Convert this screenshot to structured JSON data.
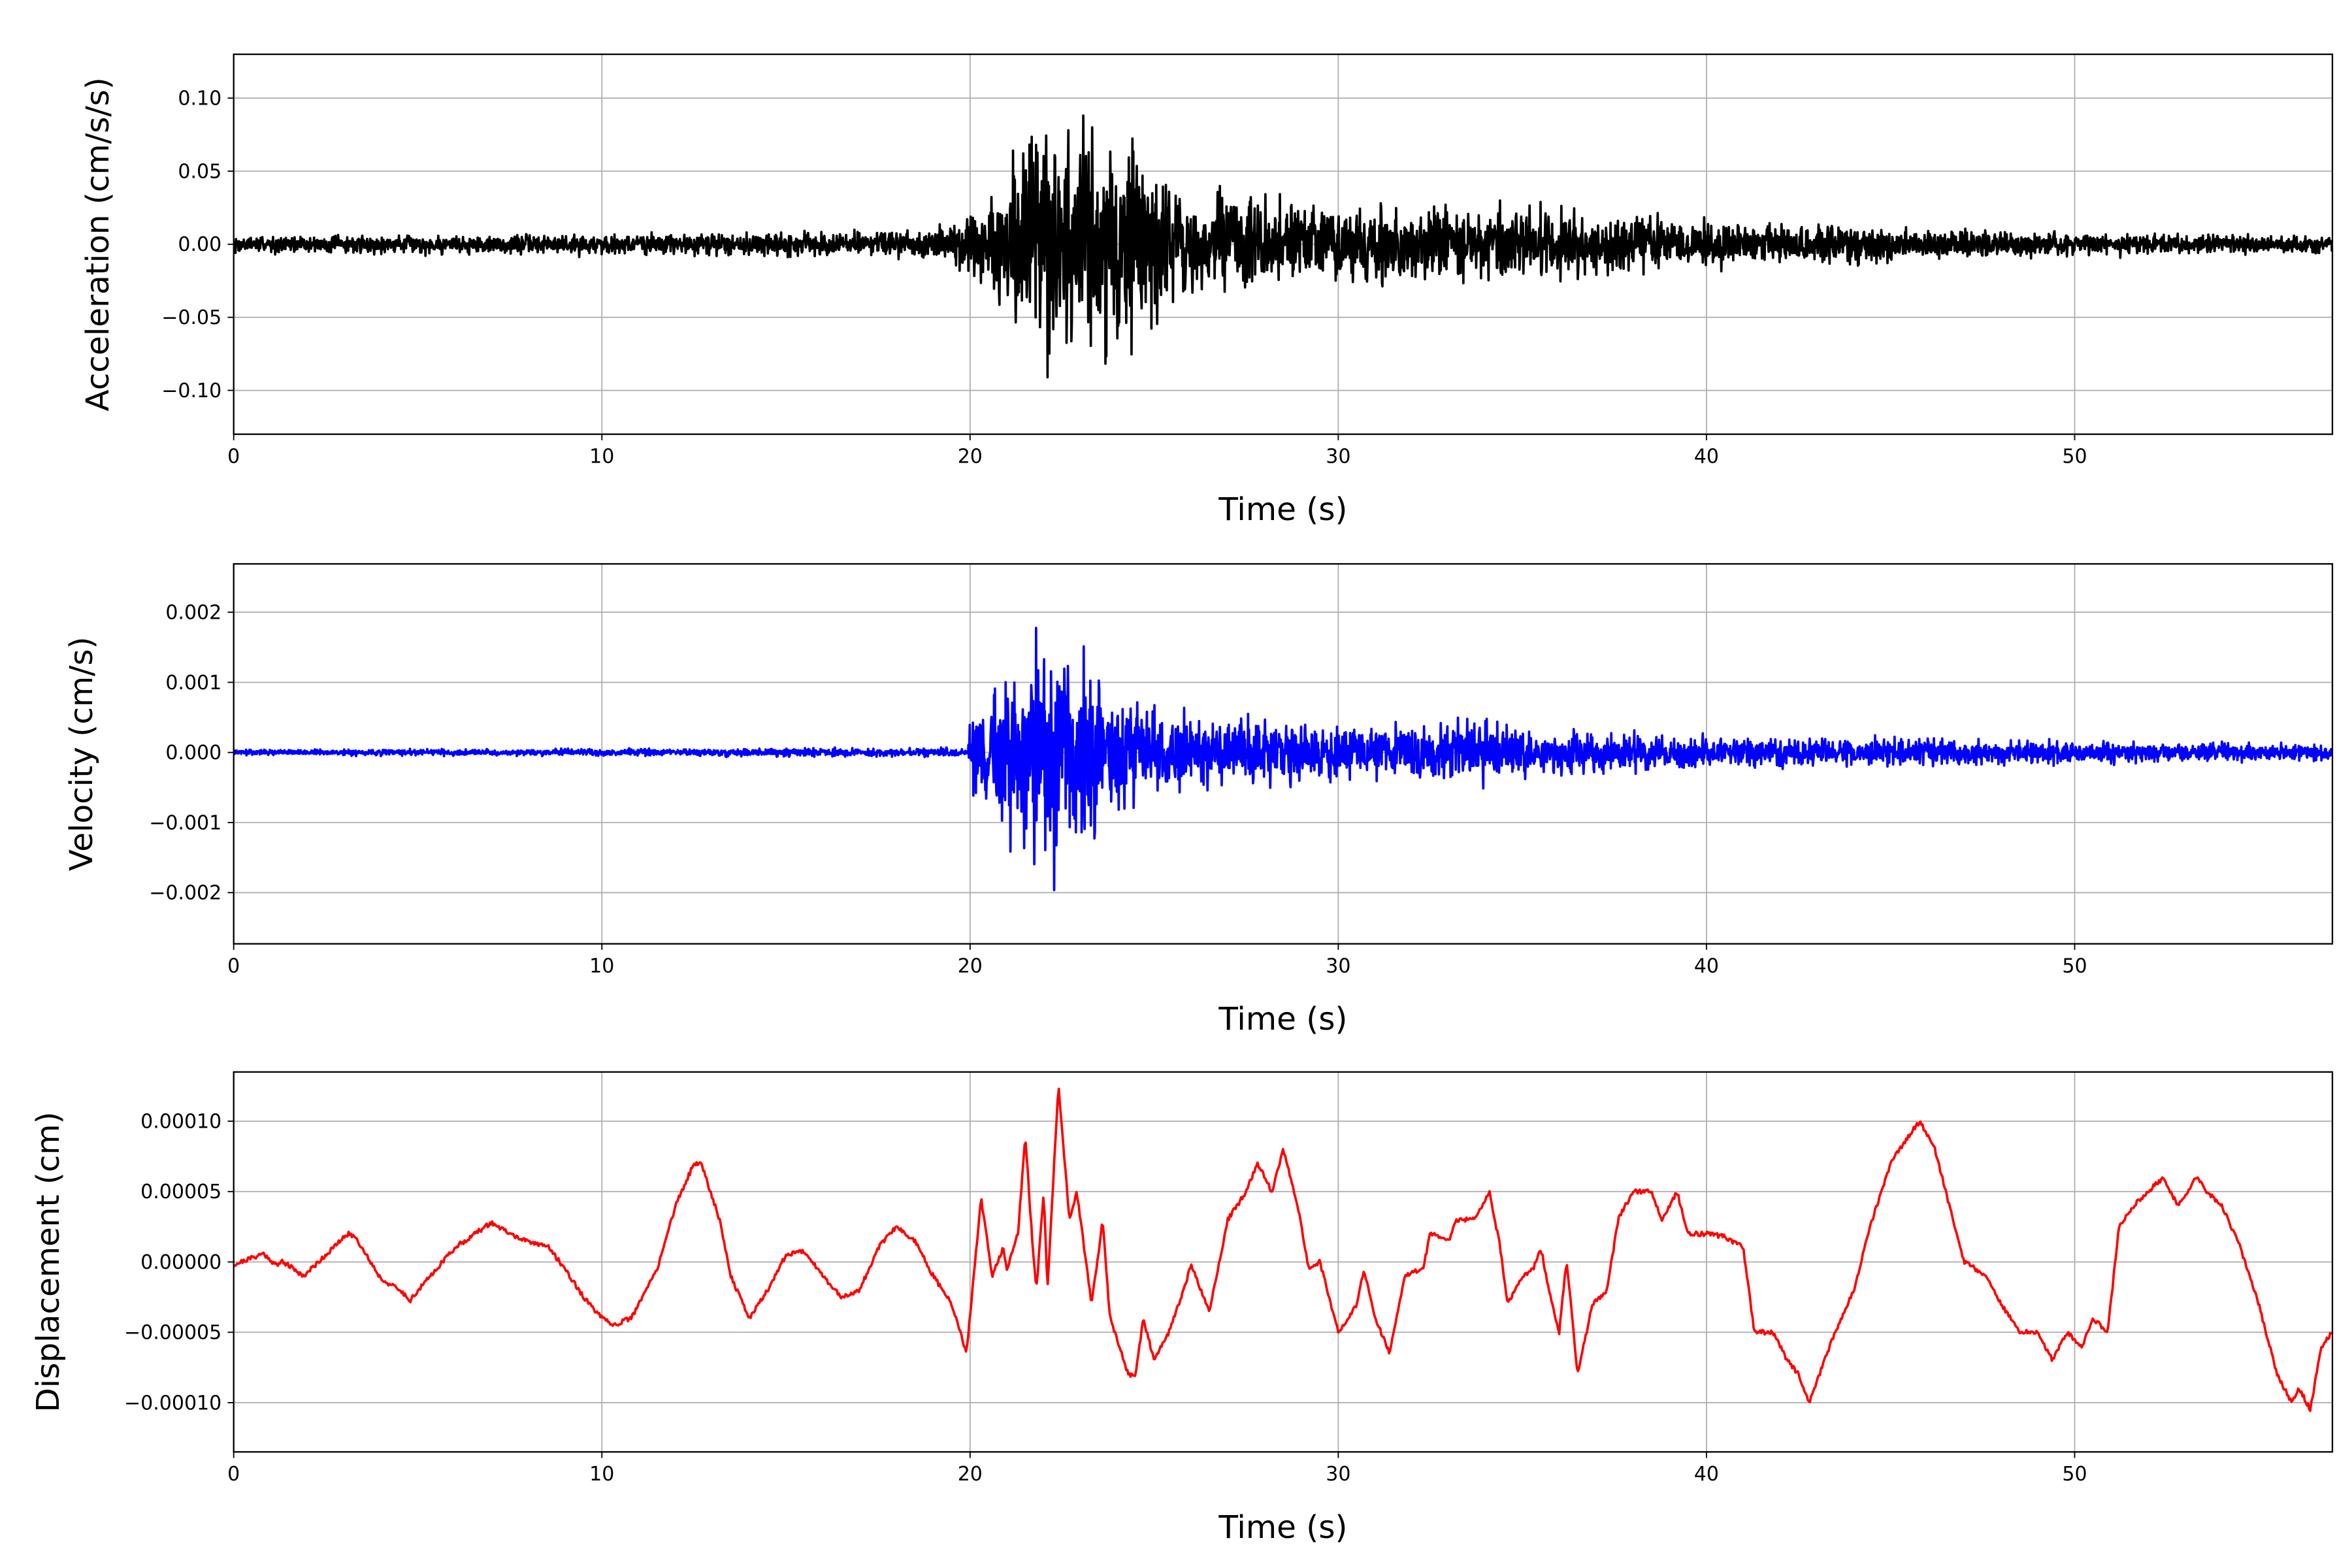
{
  "chart_data": [
    {
      "type": "line",
      "title": "",
      "xlabel": "Time (s)",
      "ylabel": "Acceleration (cm/s/s)",
      "xlim": [
        0,
        57
      ],
      "ylim": [
        -0.13,
        0.13
      ],
      "xticks": [
        0,
        10,
        20,
        30,
        40,
        50
      ],
      "xtick_labels": [
        "0",
        "10",
        "20",
        "30",
        "40",
        "50"
      ],
      "yticks": [
        -0.1,
        -0.05,
        0,
        0.05,
        0.1
      ],
      "ytick_labels": [
        "−0.10",
        "−0.05",
        "0.00",
        "0.05",
        "0.10"
      ],
      "grid": true,
      "color": "#000000",
      "signal": "noise",
      "amplitude_envelope": [
        [
          0,
          0.007
        ],
        [
          19,
          0.011
        ],
        [
          20,
          0.03
        ],
        [
          21,
          0.06
        ],
        [
          22.2,
          0.11
        ],
        [
          24.5,
          0.085
        ],
        [
          25.5,
          0.05
        ],
        [
          27,
          0.042
        ],
        [
          30,
          0.032
        ],
        [
          34,
          0.032
        ],
        [
          36,
          0.028
        ],
        [
          40,
          0.02
        ],
        [
          45,
          0.015
        ],
        [
          50,
          0.01
        ],
        [
          57,
          0.007
        ]
      ],
      "seed": 7
    },
    {
      "type": "line",
      "title": "",
      "xlabel": "Time (s)",
      "ylabel": "Velocity (cm/s)",
      "xlim": [
        0,
        57
      ],
      "ylim": [
        -0.00273,
        0.00269
      ],
      "xticks": [
        0,
        10,
        20,
        30,
        40,
        50
      ],
      "xtick_labels": [
        "0",
        "10",
        "20",
        "30",
        "40",
        "50"
      ],
      "yticks": [
        -0.002,
        -0.001,
        0,
        0.001,
        0.002
      ],
      "ytick_labels": [
        "−0.002",
        "−0.001",
        "0.000",
        "0.001",
        "0.002"
      ],
      "grid": true,
      "color": "#0000ff",
      "signal": "noise",
      "amplitude_envelope": [
        [
          0,
          5e-05
        ],
        [
          19.9,
          8e-05
        ],
        [
          20.1,
          0.0008
        ],
        [
          21.5,
          0.0017
        ],
        [
          22.3,
          0.0022
        ],
        [
          24,
          0.0012
        ],
        [
          25,
          0.0007
        ],
        [
          30,
          0.0005
        ],
        [
          34,
          0.0006
        ],
        [
          35,
          0.0004
        ],
        [
          40,
          0.0003
        ],
        [
          50,
          0.0002
        ],
        [
          57,
          0.00015
        ]
      ],
      "seed": 13
    },
    {
      "type": "line",
      "title": "",
      "xlabel": "Time (s)",
      "ylabel": "Displacement (cm)",
      "xlim": [
        0,
        57
      ],
      "ylim": [
        -0.000135,
        0.000135
      ],
      "xticks": [
        0,
        10,
        20,
        30,
        40,
        50
      ],
      "xtick_labels": [
        "0",
        "10",
        "20",
        "30",
        "40",
        "50"
      ],
      "yticks": [
        -0.0001,
        -5e-05,
        0,
        5e-05,
        0.0001
      ],
      "ytick_labels": [
        "−0.00010",
        "−0.00005",
        "0.00000",
        "0.00005",
        "0.00010"
      ],
      "grid": true,
      "color": "#ff0000",
      "signal": "points",
      "points": [
        [
          0,
          -2e-06
        ],
        [
          0.8,
          6e-06
        ],
        [
          1.2,
          -3e-06
        ],
        [
          1.3,
          1e-06
        ],
        [
          1.9,
          -1e-05
        ],
        [
          2.5,
          5e-06
        ],
        [
          3.1,
          2e-05
        ],
        [
          3.3,
          1.8e-05
        ],
        [
          4,
          -1.2e-05
        ],
        [
          4.5,
          -2e-05
        ],
        [
          4.8,
          -2.7e-05
        ],
        [
          5.5,
          -5e-06
        ],
        [
          6,
          1e-05
        ],
        [
          7,
          2.8e-05
        ],
        [
          7.5,
          2e-05
        ],
        [
          8,
          1.4e-05
        ],
        [
          8.5,
          1.2e-05
        ],
        [
          9,
          -5e-06
        ],
        [
          9.5,
          -2.5e-05
        ],
        [
          10,
          -4e-05
        ],
        [
          10.3,
          -4.5e-05
        ],
        [
          10.8,
          -4e-05
        ],
        [
          11.5,
          -5e-06
        ],
        [
          12,
          4e-05
        ],
        [
          12.5,
          7e-05
        ],
        [
          12.7,
          7e-05
        ],
        [
          13.2,
          3e-05
        ],
        [
          13.5,
          -1e-05
        ],
        [
          14,
          -4e-05
        ],
        [
          14.5,
          -2e-05
        ],
        [
          15,
          5e-06
        ],
        [
          15.5,
          8e-06
        ],
        [
          16,
          -1e-05
        ],
        [
          16.5,
          -2.5e-05
        ],
        [
          17,
          -2e-05
        ],
        [
          17.5,
          1e-05
        ],
        [
          18,
          2.5e-05
        ],
        [
          18.5,
          1.5e-05
        ],
        [
          19,
          -1e-05
        ],
        [
          19.5,
          -3e-05
        ],
        [
          19.9,
          -6.5e-05
        ],
        [
          20.3,
          4.5e-05
        ],
        [
          20.6,
          -1e-05
        ],
        [
          20.9,
          1e-05
        ],
        [
          21,
          -5e-06
        ],
        [
          21.3,
          2e-05
        ],
        [
          21.5,
          9e-05
        ],
        [
          21.7,
          1e-05
        ],
        [
          21.8,
          -2e-05
        ],
        [
          22,
          5e-05
        ],
        [
          22.1,
          -2e-05
        ],
        [
          22.4,
          0.000125
        ],
        [
          22.7,
          3e-05
        ],
        [
          22.9,
          5e-05
        ],
        [
          23.3,
          -3e-05
        ],
        [
          23.6,
          3e-05
        ],
        [
          23.8,
          -4e-05
        ],
        [
          24.3,
          -8e-05
        ],
        [
          24.5,
          -8e-05
        ],
        [
          24.7,
          -4e-05
        ],
        [
          25,
          -7e-05
        ],
        [
          25.4,
          -5e-05
        ],
        [
          25.8,
          -2e-05
        ],
        [
          26,
          -2e-06
        ],
        [
          26.5,
          -3.5e-05
        ],
        [
          27,
          3e-05
        ],
        [
          27.5,
          5e-05
        ],
        [
          27.8,
          7e-05
        ],
        [
          28.2,
          5e-05
        ],
        [
          28.5,
          8e-05
        ],
        [
          28.9,
          4e-05
        ],
        [
          29.2,
          -5e-06
        ],
        [
          29.5,
          0
        ],
        [
          30,
          -5e-05
        ],
        [
          30.5,
          -3e-05
        ],
        [
          30.7,
          -5e-06
        ],
        [
          31,
          -4e-05
        ],
        [
          31.4,
          -6.5e-05
        ],
        [
          31.8,
          -1e-05
        ],
        [
          32.3,
          -5e-06
        ],
        [
          32.5,
          2e-05
        ],
        [
          33,
          1.5e-05
        ],
        [
          33.2,
          3e-05
        ],
        [
          33.7,
          3e-05
        ],
        [
          34.1,
          5e-05
        ],
        [
          34.4,
          1e-05
        ],
        [
          34.6,
          -3e-05
        ],
        [
          35,
          -1e-05
        ],
        [
          35.3,
          -5e-06
        ],
        [
          35.5,
          1e-05
        ],
        [
          35.8,
          -3e-05
        ],
        [
          36,
          -5e-05
        ],
        [
          36.2,
          2e-06
        ],
        [
          36.5,
          -8e-05
        ],
        [
          36.9,
          -3e-05
        ],
        [
          37.3,
          -2e-05
        ],
        [
          37.6,
          3e-05
        ],
        [
          38,
          5e-05
        ],
        [
          38.5,
          5e-05
        ],
        [
          38.8,
          3e-05
        ],
        [
          39.2,
          5e-05
        ],
        [
          39.5,
          2e-05
        ],
        [
          40,
          2e-05
        ],
        [
          40.5,
          1.8e-05
        ],
        [
          41,
          1e-05
        ],
        [
          41.3,
          -5e-05
        ],
        [
          41.8,
          -5e-05
        ],
        [
          42.2,
          -7e-05
        ],
        [
          42.5,
          -8e-05
        ],
        [
          42.8,
          -0.0001
        ],
        [
          43.2,
          -7e-05
        ],
        [
          43.5,
          -5e-05
        ],
        [
          44,
          -2e-05
        ],
        [
          44.5,
          3e-05
        ],
        [
          45,
          7e-05
        ],
        [
          45.5,
          9e-05
        ],
        [
          45.8,
          0.0001
        ],
        [
          46.2,
          8e-05
        ],
        [
          46.6,
          4e-05
        ],
        [
          47,
          0
        ],
        [
          47.6,
          -1e-05
        ],
        [
          48,
          -3e-05
        ],
        [
          48.5,
          -5e-05
        ],
        [
          49,
          -5e-05
        ],
        [
          49.4,
          -7e-05
        ],
        [
          49.8,
          -5e-05
        ],
        [
          50.2,
          -6e-05
        ],
        [
          50.5,
          -4e-05
        ],
        [
          50.9,
          -5e-05
        ],
        [
          51.2,
          2.5e-05
        ],
        [
          51.6,
          4e-05
        ],
        [
          52,
          5e-05
        ],
        [
          52.4,
          6e-05
        ],
        [
          52.8,
          4e-05
        ],
        [
          53.3,
          6e-05
        ],
        [
          53.6,
          5e-05
        ],
        [
          54,
          4e-05
        ],
        [
          54.5,
          1e-05
        ],
        [
          55,
          -3e-05
        ],
        [
          55.5,
          -8e-05
        ],
        [
          55.9,
          -0.0001
        ],
        [
          56.1,
          -9e-05
        ],
        [
          56.4,
          -0.000105
        ],
        [
          56.7,
          -6e-05
        ],
        [
          57,
          -5e-05
        ]
      ],
      "seed": 21
    }
  ]
}
